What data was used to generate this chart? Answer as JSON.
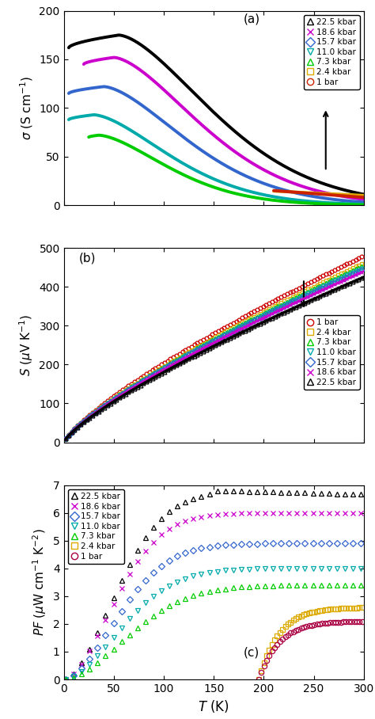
{
  "pressures_a": [
    "22.5 kbar",
    "18.6 kbar",
    "15.7 kbar",
    "11.0 kbar",
    "7.3 kbar",
    "2.4 kbar",
    "1 bar"
  ],
  "pressures_b": [
    "1 bar",
    "2.4 kbar",
    "7.3 kbar",
    "11.0 kbar",
    "15.7 kbar",
    "18.6 kbar",
    "22.5 kbar"
  ],
  "pressures_c": [
    "22.5 kbar",
    "18.6 kbar",
    "15.7 kbar",
    "11.0 kbar",
    "7.3 kbar",
    "2.4 kbar",
    "1 bar"
  ],
  "colors_a": [
    "black",
    "#cc00cc",
    "#3366cc",
    "#00aaaa",
    "#00cc00",
    "#ddaa00",
    "#cc2200"
  ],
  "colors_b": [
    "#cc0000",
    "#ddaa00",
    "#00cc00",
    "#00aaaa",
    "#3366cc",
    "#cc00cc",
    "black"
  ],
  "colors_c": [
    "black",
    "#cc00cc",
    "#3366cc",
    "#00aaaa",
    "#00cc00",
    "#ddaa00",
    "#aa0044"
  ],
  "markers_a": [
    "^",
    "x",
    "D",
    "v",
    "^",
    "s",
    "o"
  ],
  "markers_b": [
    "o",
    "s",
    "^",
    "v",
    "D",
    "x",
    "^"
  ],
  "markers_c": [
    "^",
    "x",
    "D",
    "v",
    "^",
    "s",
    "o"
  ],
  "panel_labels": [
    "(a)",
    "(b)",
    "(c)"
  ],
  "ylabel_a": "$\\sigma$ (S cm$^{-1}$)",
  "ylabel_b": "$S$ ($\\mu$V K$^{-1}$)",
  "ylabel_c": "$PF$ ($\\mu$W cm$^{-1}$ K$^{-2}$)",
  "xlabel": "$T$ (K)",
  "ylim_a": [
    0,
    200
  ],
  "ylim_b": [
    0,
    500
  ],
  "ylim_c": [
    0,
    7
  ],
  "xlim": [
    0,
    300
  ],
  "yticks_a": [
    0,
    50,
    100,
    150,
    200
  ],
  "yticks_b": [
    0,
    100,
    200,
    300,
    400,
    500
  ],
  "yticks_c": [
    0,
    1,
    2,
    3,
    4,
    5,
    6,
    7
  ],
  "xticks": [
    0,
    50,
    100,
    150,
    200,
    250,
    300
  ]
}
